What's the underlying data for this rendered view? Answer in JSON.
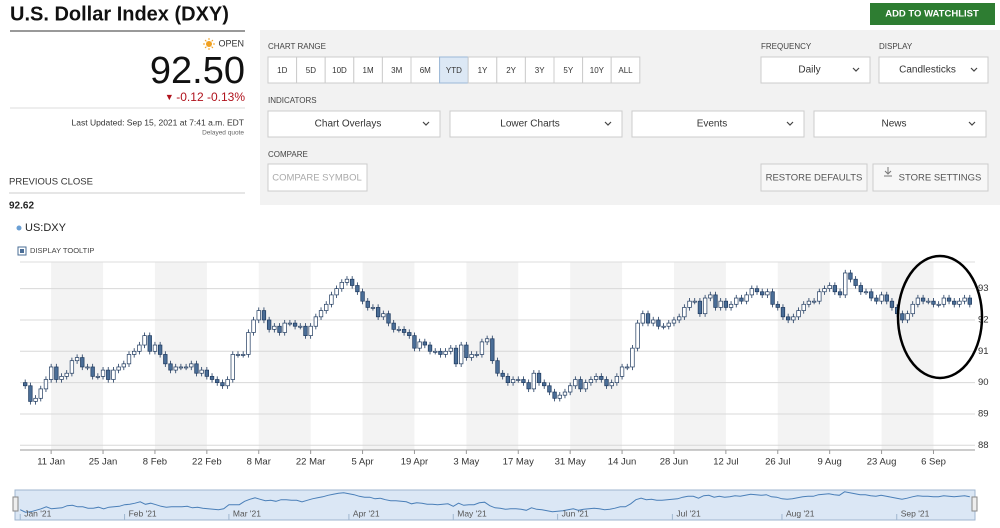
{
  "header": {
    "title": "U.S. Dollar Index (DXY)",
    "watchlist_button": "ADD TO WATCHLIST"
  },
  "quote": {
    "status": "OPEN",
    "price": "92.50",
    "change": "-0.12",
    "change_pct": "-0.13%",
    "last_updated": "Last Updated: Sep 15, 2021 at 7:41 a.m. EDT",
    "delayed": "Delayed quote",
    "previous_close_label": "PREVIOUS CLOSE",
    "previous_close": "92.62"
  },
  "controls": {
    "chart_range_label": "CHART RANGE",
    "ranges": [
      "1D",
      "5D",
      "10D",
      "1M",
      "3M",
      "6M",
      "YTD",
      "1Y",
      "2Y",
      "3Y",
      "5Y",
      "10Y",
      "ALL"
    ],
    "selected_range_index": 6,
    "frequency_label": "FREQUENCY",
    "frequency": "Daily",
    "display_label": "DISPLAY",
    "display": "Candlesticks",
    "indicators_label": "INDICATORS",
    "indicators": [
      "Chart Overlays",
      "Lower Charts",
      "Events",
      "News"
    ],
    "compare_label": "COMPARE",
    "compare_placeholder": "COMPARE SYMBOL",
    "restore_button": "RESTORE DEFAULTS",
    "store_button": "STORE SETTINGS"
  },
  "legend": {
    "symbol": "US:DXY",
    "tooltip": "DISPLAY TOOLTIP"
  },
  "chart_data": {
    "type": "candlestick",
    "up_color": "#ffffff",
    "down_color": "#4a6d96",
    "outline_color": "#1f3a5f",
    "grid": true,
    "xlim": [
      -1,
      183
    ],
    "xticks": [
      {
        "value": 5,
        "label": "11 Jan"
      },
      {
        "value": 15,
        "label": "25 Jan"
      },
      {
        "value": 25,
        "label": "8 Feb"
      },
      {
        "value": 35,
        "label": "22 Feb"
      },
      {
        "value": 45,
        "label": "8 Mar"
      },
      {
        "value": 55,
        "label": "22 Mar"
      },
      {
        "value": 65,
        "label": "5 Apr"
      },
      {
        "value": 75,
        "label": "19 Apr"
      },
      {
        "value": 85,
        "label": "3 May"
      },
      {
        "value": 95,
        "label": "17 May"
      },
      {
        "value": 105,
        "label": "31 May"
      },
      {
        "value": 115,
        "label": "14 Jun"
      },
      {
        "value": 125,
        "label": "28 Jun"
      },
      {
        "value": 135,
        "label": "12 Jul"
      },
      {
        "value": 145,
        "label": "26 Jul"
      },
      {
        "value": 155,
        "label": "9 Aug"
      },
      {
        "value": 165,
        "label": "23 Aug"
      },
      {
        "value": 175,
        "label": "6 Sep"
      }
    ],
    "ylim": [
      87.85,
      93.85
    ],
    "yticks": [
      88,
      89,
      90,
      91,
      92,
      93
    ],
    "navigator_ticks": [
      {
        "value": 0,
        "label": "Jan '21"
      },
      {
        "value": 20,
        "label": "Feb '21"
      },
      {
        "value": 40,
        "label": "Mar '21"
      },
      {
        "value": 63,
        "label": "Apr '21"
      },
      {
        "value": 83,
        "label": "May '21"
      },
      {
        "value": 103,
        "label": "Jun '21"
      },
      {
        "value": 125,
        "label": "Jul '21"
      },
      {
        "value": 146,
        "label": "Aug '21"
      },
      {
        "value": 168,
        "label": "Sep '21"
      }
    ],
    "open": [
      90.0,
      89.9,
      89.4,
      89.5,
      89.8,
      90.1,
      90.5,
      90.1,
      90.2,
      90.3,
      90.7,
      90.8,
      90.5,
      90.5,
      90.2,
      90.2,
      90.4,
      90.1,
      90.4,
      90.5,
      90.6,
      90.9,
      91.0,
      91.2,
      91.5,
      91.0,
      91.2,
      90.9,
      90.6,
      90.4,
      90.5,
      90.5,
      90.5,
      90.6,
      90.3,
      90.4,
      90.2,
      90.1,
      90.0,
      89.9,
      90.1,
      90.9,
      90.9,
      90.9,
      91.6,
      92.0,
      92.3,
      92.0,
      91.7,
      91.8,
      91.6,
      91.9,
      91.9,
      91.8,
      91.8,
      91.5,
      91.8,
      92.1,
      92.3,
      92.5,
      92.8,
      93.0,
      93.2,
      93.3,
      93.1,
      92.9,
      92.6,
      92.4,
      92.4,
      92.1,
      92.2,
      91.9,
      91.7,
      91.7,
      91.6,
      91.5,
      91.1,
      91.3,
      91.2,
      91.0,
      91.0,
      90.9,
      91.0,
      91.1,
      90.6,
      91.2,
      90.8,
      90.9,
      90.9,
      91.3,
      91.4,
      90.7,
      90.3,
      90.2,
      90.0,
      90.1,
      90.1,
      90.0,
      89.8,
      90.3,
      90.0,
      89.9,
      89.7,
      89.5,
      89.6,
      89.7,
      89.9,
      90.1,
      89.8,
      90.0,
      90.1,
      90.2,
      90.1,
      89.9,
      90.0,
      90.2,
      90.5,
      90.5,
      91.1,
      91.9,
      92.2,
      91.9,
      92.0,
      91.8,
      91.8,
      91.9,
      92.0,
      92.1,
      92.4,
      92.6,
      92.6,
      92.2,
      92.7,
      92.8,
      92.4,
      92.6,
      92.4,
      92.5,
      92.7,
      92.6,
      92.8,
      93.0,
      92.9,
      92.8,
      92.9,
      92.5,
      92.4,
      92.1,
      92.0,
      92.1,
      92.3,
      92.5,
      92.6,
      92.6,
      92.9,
      93.0,
      93.1,
      92.9,
      92.8,
      93.5,
      93.3,
      93.1,
      92.9,
      92.9,
      92.7,
      92.6,
      92.8,
      92.6,
      92.4,
      92.2,
      92.0,
      92.2,
      92.5,
      92.7,
      92.6,
      92.6,
      92.5,
      92.5,
      92.7,
      92.6,
      92.5,
      92.6,
      92.7
    ],
    "high": [
      90.1,
      90.0,
      89.6,
      89.9,
      90.2,
      90.6,
      90.6,
      90.3,
      90.4,
      90.8,
      90.9,
      90.9,
      90.6,
      90.6,
      90.3,
      90.5,
      90.5,
      90.5,
      90.6,
      90.7,
      91.0,
      91.1,
      91.3,
      91.6,
      91.6,
      91.3,
      91.3,
      91.0,
      90.7,
      90.6,
      90.6,
      90.6,
      90.7,
      90.7,
      90.5,
      90.5,
      90.3,
      90.2,
      90.1,
      90.2,
      91.0,
      91.0,
      91.0,
      91.7,
      92.1,
      92.4,
      92.4,
      92.1,
      91.9,
      91.9,
      92.0,
      92.0,
      92.0,
      91.9,
      91.9,
      91.9,
      92.2,
      92.4,
      92.6,
      92.9,
      93.1,
      93.3,
      93.4,
      93.4,
      93.2,
      93.0,
      92.7,
      92.5,
      92.5,
      92.3,
      92.3,
      92.0,
      91.8,
      91.8,
      91.7,
      91.6,
      91.4,
      91.4,
      91.3,
      91.1,
      91.1,
      91.1,
      91.2,
      91.2,
      91.3,
      91.3,
      91.0,
      91.0,
      91.4,
      91.5,
      91.5,
      90.8,
      90.4,
      90.3,
      90.2,
      90.2,
      90.2,
      90.1,
      90.4,
      90.4,
      90.1,
      90.0,
      89.8,
      89.7,
      89.8,
      90.0,
      90.2,
      90.2,
      90.1,
      90.2,
      90.3,
      90.3,
      90.2,
      90.1,
      90.3,
      90.6,
      90.6,
      91.2,
      92.0,
      92.3,
      92.3,
      92.1,
      92.1,
      91.9,
      92.0,
      92.1,
      92.2,
      92.5,
      92.7,
      92.7,
      92.7,
      92.8,
      92.9,
      92.9,
      92.7,
      92.7,
      92.6,
      92.8,
      92.8,
      92.9,
      93.1,
      93.1,
      93.0,
      93.0,
      93.0,
      92.6,
      92.5,
      92.2,
      92.2,
      92.4,
      92.6,
      92.7,
      92.7,
      93.0,
      93.1,
      93.2,
      93.2,
      93.0,
      93.6,
      93.6,
      93.4,
      93.2,
      93.0,
      93.0,
      92.8,
      92.9,
      92.9,
      92.7,
      92.5,
      92.3,
      92.3,
      92.6,
      92.8,
      92.8,
      92.7,
      92.7,
      92.6,
      92.8,
      92.8,
      92.7,
      92.7,
      92.8,
      92.8
    ],
    "low": [
      89.8,
      89.3,
      89.3,
      89.4,
      89.7,
      90.0,
      90.0,
      90.0,
      90.1,
      90.2,
      90.6,
      90.4,
      90.4,
      90.1,
      90.1,
      90.1,
      90.0,
      90.0,
      90.3,
      90.4,
      90.5,
      90.8,
      90.9,
      91.1,
      90.9,
      90.9,
      90.8,
      90.5,
      90.3,
      90.3,
      90.4,
      90.4,
      90.4,
      90.2,
      90.2,
      90.1,
      90.0,
      89.9,
      89.8,
      89.8,
      90.0,
      90.8,
      90.8,
      90.8,
      91.5,
      91.9,
      91.9,
      91.6,
      91.6,
      91.5,
      91.5,
      91.8,
      91.7,
      91.7,
      91.4,
      91.4,
      91.7,
      92.0,
      92.2,
      92.4,
      92.7,
      92.9,
      93.1,
      93.0,
      92.8,
      92.5,
      92.3,
      92.3,
      92.0,
      92.0,
      91.8,
      91.6,
      91.6,
      91.5,
      91.4,
      91.0,
      91.0,
      91.1,
      90.9,
      90.9,
      90.8,
      90.8,
      90.9,
      90.5,
      90.5,
      90.7,
      90.7,
      90.8,
      90.8,
      91.2,
      90.6,
      90.2,
      90.1,
      89.9,
      89.9,
      90.0,
      89.9,
      89.7,
      89.7,
      89.9,
      89.8,
      89.6,
      89.4,
      89.4,
      89.5,
      89.6,
      89.8,
      89.7,
      89.7,
      89.9,
      90.0,
      90.0,
      89.8,
      89.8,
      89.9,
      90.1,
      90.4,
      90.4,
      91.0,
      91.8,
      91.8,
      91.8,
      91.7,
      91.7,
      91.7,
      91.8,
      91.9,
      92.0,
      92.3,
      92.5,
      92.1,
      92.1,
      92.6,
      92.3,
      92.3,
      92.3,
      92.3,
      92.4,
      92.5,
      92.5,
      92.7,
      92.8,
      92.7,
      92.7,
      92.4,
      92.3,
      92.0,
      91.9,
      91.9,
      92.0,
      92.2,
      92.4,
      92.5,
      92.5,
      92.8,
      92.9,
      92.8,
      92.7,
      92.7,
      93.2,
      93.0,
      92.8,
      92.8,
      92.6,
      92.5,
      92.5,
      92.5,
      92.3,
      92.1,
      91.9,
      91.9,
      92.1,
      92.4,
      92.5,
      92.5,
      92.4,
      92.4,
      92.4,
      92.5,
      92.4,
      92.4,
      92.5,
      92.4
    ],
    "close": [
      89.9,
      89.4,
      89.5,
      89.8,
      90.1,
      90.5,
      90.1,
      90.2,
      90.3,
      90.7,
      90.8,
      90.5,
      90.5,
      90.2,
      90.2,
      90.4,
      90.1,
      90.4,
      90.5,
      90.6,
      90.9,
      91.0,
      91.2,
      91.5,
      91.0,
      91.2,
      90.9,
      90.6,
      90.4,
      90.5,
      90.5,
      90.5,
      90.6,
      90.3,
      90.4,
      90.2,
      90.1,
      90.0,
      89.9,
      90.1,
      90.9,
      90.9,
      90.9,
      91.6,
      92.0,
      92.3,
      92.0,
      91.7,
      91.8,
      91.6,
      91.9,
      91.9,
      91.8,
      91.8,
      91.5,
      91.8,
      92.1,
      92.3,
      92.5,
      92.8,
      93.0,
      93.2,
      93.3,
      93.1,
      92.9,
      92.6,
      92.4,
      92.4,
      92.1,
      92.2,
      91.9,
      91.7,
      91.7,
      91.6,
      91.5,
      91.1,
      91.3,
      91.2,
      91.0,
      91.0,
      90.9,
      91.0,
      91.1,
      90.6,
      91.2,
      90.8,
      90.9,
      90.9,
      91.3,
      91.4,
      90.7,
      90.3,
      90.2,
      90.0,
      90.1,
      90.1,
      90.0,
      89.8,
      90.3,
      90.0,
      89.9,
      89.7,
      89.5,
      89.6,
      89.7,
      89.9,
      90.1,
      89.8,
      90.0,
      90.1,
      90.2,
      90.1,
      89.9,
      90.0,
      90.2,
      90.5,
      90.5,
      91.1,
      91.9,
      92.2,
      91.9,
      92.0,
      91.8,
      91.8,
      91.9,
      92.0,
      92.1,
      92.4,
      92.6,
      92.6,
      92.2,
      92.7,
      92.8,
      92.4,
      92.6,
      92.4,
      92.5,
      92.7,
      92.6,
      92.8,
      93.0,
      92.9,
      92.8,
      92.9,
      92.5,
      92.4,
      92.1,
      92.0,
      92.1,
      92.3,
      92.5,
      92.6,
      92.6,
      92.9,
      93.0,
      93.1,
      92.9,
      92.8,
      93.5,
      93.3,
      93.1,
      92.9,
      92.9,
      92.7,
      92.6,
      92.8,
      92.6,
      92.4,
      92.2,
      92.0,
      92.2,
      92.5,
      92.7,
      92.6,
      92.6,
      92.5,
      92.5,
      92.7,
      92.6,
      92.5,
      92.6,
      92.7,
      92.5
    ]
  }
}
